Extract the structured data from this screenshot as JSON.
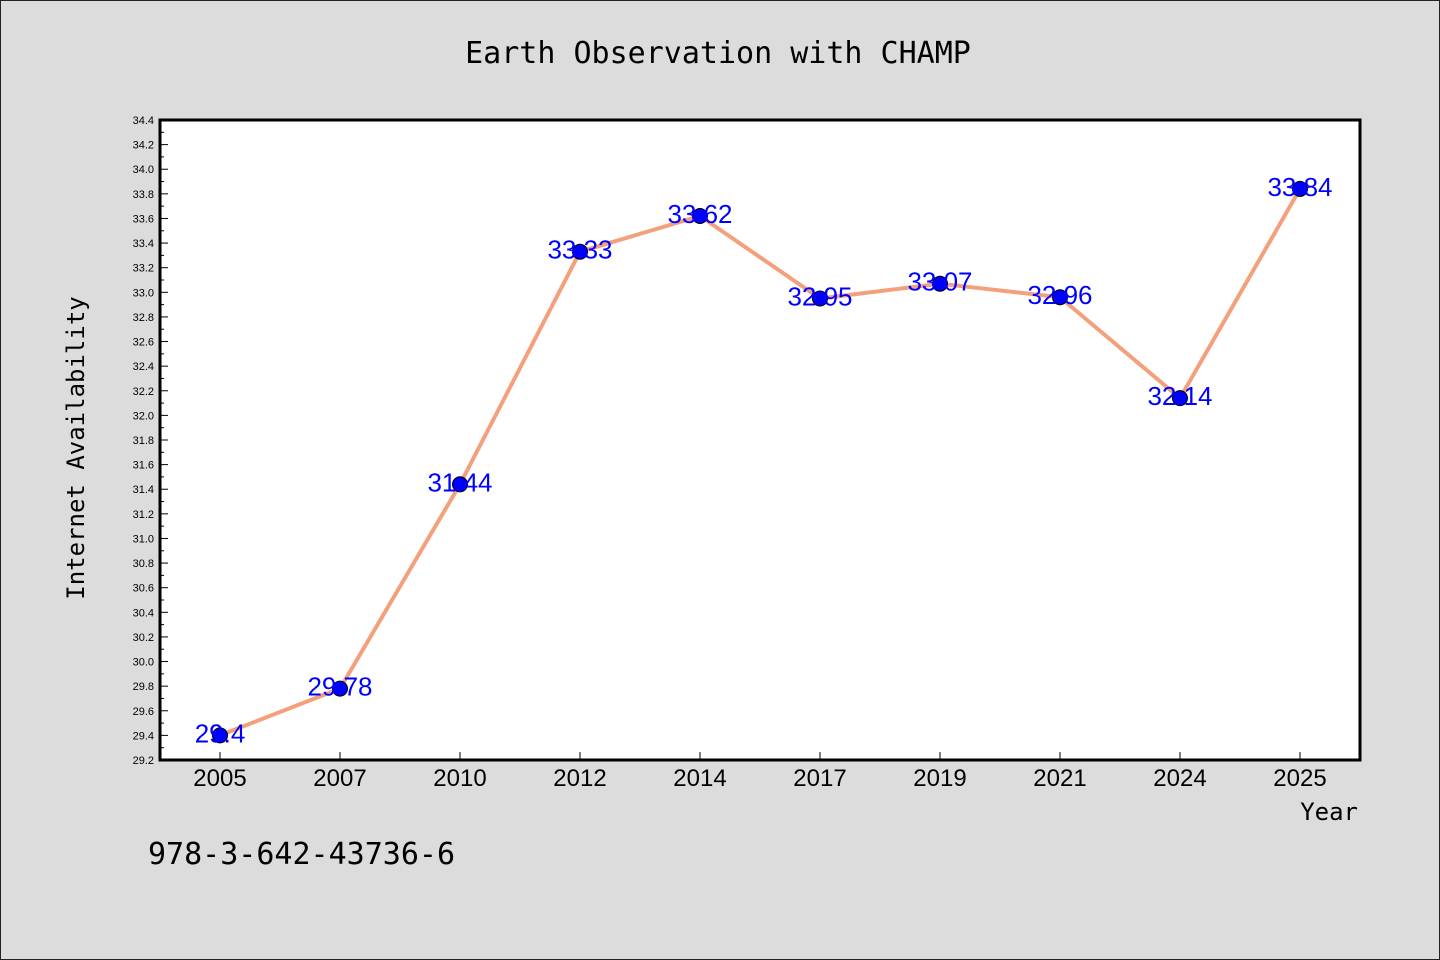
{
  "chart_data": {
    "type": "line",
    "title": "Earth Observation with CHAMP",
    "xlabel": "Year",
    "ylabel": "Internet Availability",
    "categories": [
      "2005",
      "2007",
      "2010",
      "2012",
      "2014",
      "2017",
      "2019",
      "2021",
      "2024",
      "2025"
    ],
    "values": [
      29.4,
      29.78,
      31.44,
      33.33,
      33.62,
      32.95,
      33.07,
      32.96,
      32.14,
      33.84
    ],
    "data_labels": [
      "29.4",
      "29.78",
      "31.44",
      "33.33",
      "33.62",
      "32.95",
      "33.07",
      "32.96",
      "32.14",
      "33.84"
    ],
    "ylim": [
      29.2,
      34.4
    ],
    "yticks": [
      "29.2",
      "29.4",
      "29.6",
      "29.8",
      "30.0",
      "30.2",
      "30.4",
      "30.6",
      "30.8",
      "31.0",
      "31.2",
      "31.4",
      "31.6",
      "31.8",
      "32.0",
      "32.2",
      "32.4",
      "32.6",
      "32.8",
      "33.0",
      "33.2",
      "33.4",
      "33.6",
      "33.8",
      "34.0",
      "34.2",
      "34.4"
    ],
    "grid": false,
    "line_color": "#f4a07c",
    "marker_color": "#0000ff",
    "label_color": "#0000ff"
  },
  "annotation": "978-3-642-43736-6"
}
